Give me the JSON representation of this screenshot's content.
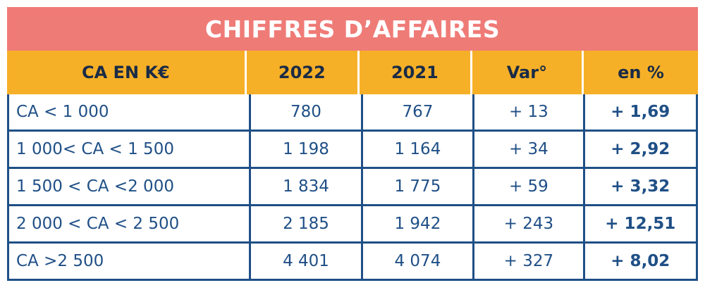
{
  "title": "CHIFFRES D’AFFAIRES",
  "columns": [
    "CA EN K€",
    "2022",
    "2021",
    "Var°",
    "en %"
  ],
  "rows": [
    {
      "label": "CA < 1 000",
      "y2022": "780",
      "y2021": "767",
      "var": "+ 13",
      "pct": "+ 1,69"
    },
    {
      "label": "1 000< CA < 1 500",
      "y2022": "1 198",
      "y2021": "1 164",
      "var": "+ 34",
      "pct": "+ 2,92"
    },
    {
      "label": "1 500 < CA <2 000",
      "y2022": "1 834",
      "y2021": "1 775",
      "var": "+ 59",
      "pct": "+ 3,32"
    },
    {
      "label": "2 000 < CA < 2 500",
      "y2022": "2 185",
      "y2021": "1 942",
      "var": "+ 243",
      "pct": "+ 12,51"
    },
    {
      "label": " CA >2 500",
      "y2022": "4 401",
      "y2021": "4 074",
      "var": "+ 327",
      "pct": "+ 8,02"
    }
  ],
  "colors": {
    "title_bg": "#ef7b77",
    "header_bg": "#f6b027",
    "grid": "#1f4f86",
    "text": "#1f4f86"
  }
}
